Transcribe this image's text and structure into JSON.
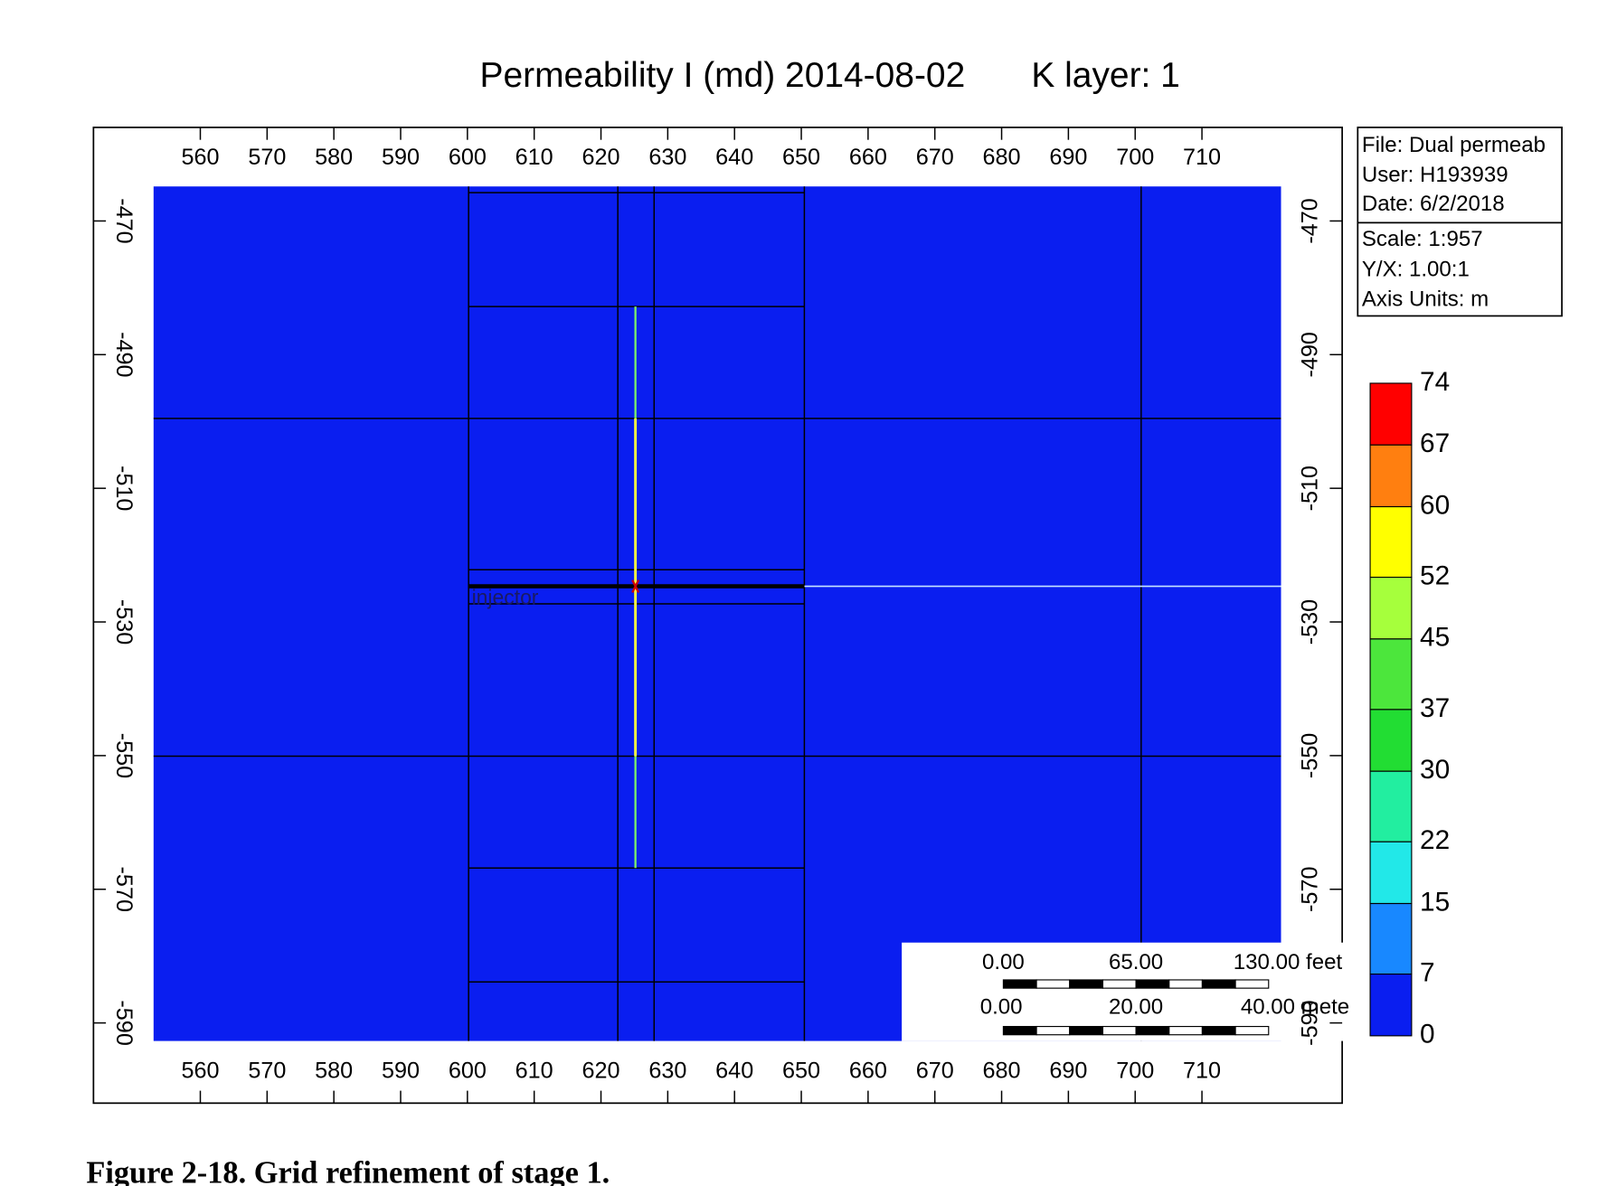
{
  "chart_data": {
    "type": "map",
    "title": "Permeability I (md) 2014-08-02",
    "subtitle": "K layer: 1",
    "xlim": [
      544,
      731
    ],
    "xticks": [
      560,
      570,
      580,
      590,
      600,
      610,
      620,
      630,
      640,
      650,
      660,
      670,
      680,
      690,
      700,
      710
    ],
    "ylim": [
      -602,
      -456
    ],
    "yticks": [
      -470,
      -490,
      -510,
      -530,
      -550,
      -570,
      -590
    ],
    "well_label": "injector",
    "colorbar": {
      "ticks": [
        74,
        67,
        60,
        52,
        45,
        37,
        30,
        22,
        15,
        7,
        0
      ],
      "colors": [
        "#ff0000",
        "#ff7f10",
        "#ffff00",
        "#a6ff3c",
        "#4ce63c",
        "#22dd33",
        "#22eea0",
        "#22e8e8",
        "#1888ff",
        "#0a1ef0"
      ]
    }
  },
  "info_box": {
    "lines": [
      "File: Dual permeab",
      "User:  H193939",
      "Date: 6/2/2018"
    ],
    "lines2": [
      "Scale: 1:957",
      "Y/X: 1.00:1",
      "Axis Units: m"
    ]
  },
  "scale_bar": {
    "feet": [
      "0.00",
      "65.00",
      "130.00 feet"
    ],
    "meters": [
      "0.00",
      "20.00",
      "40.00 mete"
    ]
  },
  "caption": "Figure 2-18. Grid refinement of stage 1."
}
